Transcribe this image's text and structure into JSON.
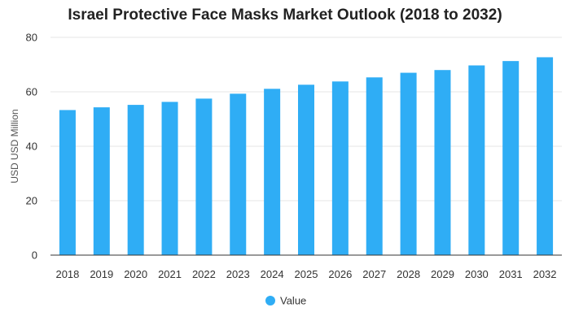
{
  "chart_data": {
    "type": "bar",
    "title": "Israel Protective Face Masks Market Outlook (2018 to 2032)",
    "xlabel": "",
    "ylabel": "USD USD Million",
    "categories": [
      "2018",
      "2019",
      "2020",
      "2021",
      "2022",
      "2023",
      "2024",
      "2025",
      "2026",
      "2027",
      "2028",
      "2029",
      "2030",
      "2031",
      "2032"
    ],
    "series": [
      {
        "name": "Value",
        "color": "#2fadf5",
        "values": [
          53.3,
          54.3,
          55.2,
          56.3,
          57.5,
          59.3,
          61.1,
          62.6,
          63.8,
          65.3,
          67.0,
          68.0,
          69.7,
          71.3,
          72.7
        ]
      }
    ],
    "ylim": [
      0,
      80
    ],
    "yticks": [
      0,
      20,
      40,
      60,
      80
    ],
    "grid": true,
    "legend_position": "bottom-center"
  }
}
